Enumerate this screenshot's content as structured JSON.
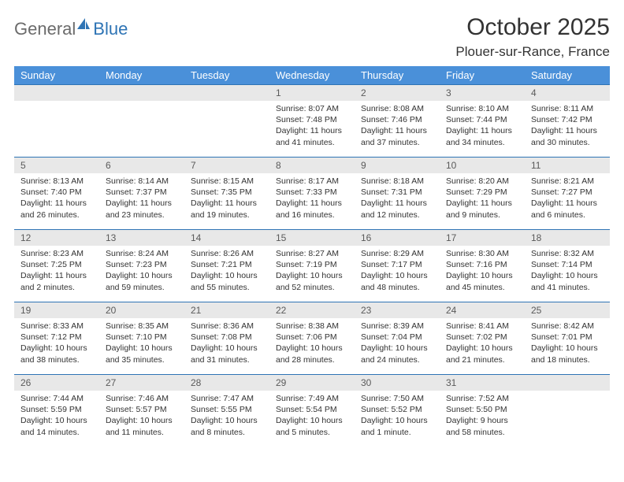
{
  "brand": {
    "part1": "General",
    "part2": "Blue"
  },
  "title": "October 2025",
  "location": "Plouer-sur-Rance, France",
  "colors": {
    "header_bg": "#4a90d9",
    "header_text": "#ffffff",
    "border": "#2e74b5",
    "daynum_bg": "#e8e8e8",
    "daynum_text": "#5a5a5a",
    "body_text": "#333333",
    "brand_gray": "#6b6b6b",
    "brand_blue": "#2e74b5"
  },
  "day_names": [
    "Sunday",
    "Monday",
    "Tuesday",
    "Wednesday",
    "Thursday",
    "Friday",
    "Saturday"
  ],
  "weeks": [
    [
      null,
      null,
      null,
      {
        "n": "1",
        "sr": "8:07 AM",
        "ss": "7:48 PM",
        "dl": "11 hours and 41 minutes."
      },
      {
        "n": "2",
        "sr": "8:08 AM",
        "ss": "7:46 PM",
        "dl": "11 hours and 37 minutes."
      },
      {
        "n": "3",
        "sr": "8:10 AM",
        "ss": "7:44 PM",
        "dl": "11 hours and 34 minutes."
      },
      {
        "n": "4",
        "sr": "8:11 AM",
        "ss": "7:42 PM",
        "dl": "11 hours and 30 minutes."
      }
    ],
    [
      {
        "n": "5",
        "sr": "8:13 AM",
        "ss": "7:40 PM",
        "dl": "11 hours and 26 minutes."
      },
      {
        "n": "6",
        "sr": "8:14 AM",
        "ss": "7:37 PM",
        "dl": "11 hours and 23 minutes."
      },
      {
        "n": "7",
        "sr": "8:15 AM",
        "ss": "7:35 PM",
        "dl": "11 hours and 19 minutes."
      },
      {
        "n": "8",
        "sr": "8:17 AM",
        "ss": "7:33 PM",
        "dl": "11 hours and 16 minutes."
      },
      {
        "n": "9",
        "sr": "8:18 AM",
        "ss": "7:31 PM",
        "dl": "11 hours and 12 minutes."
      },
      {
        "n": "10",
        "sr": "8:20 AM",
        "ss": "7:29 PM",
        "dl": "11 hours and 9 minutes."
      },
      {
        "n": "11",
        "sr": "8:21 AM",
        "ss": "7:27 PM",
        "dl": "11 hours and 6 minutes."
      }
    ],
    [
      {
        "n": "12",
        "sr": "8:23 AM",
        "ss": "7:25 PM",
        "dl": "11 hours and 2 minutes."
      },
      {
        "n": "13",
        "sr": "8:24 AM",
        "ss": "7:23 PM",
        "dl": "10 hours and 59 minutes."
      },
      {
        "n": "14",
        "sr": "8:26 AM",
        "ss": "7:21 PM",
        "dl": "10 hours and 55 minutes."
      },
      {
        "n": "15",
        "sr": "8:27 AM",
        "ss": "7:19 PM",
        "dl": "10 hours and 52 minutes."
      },
      {
        "n": "16",
        "sr": "8:29 AM",
        "ss": "7:17 PM",
        "dl": "10 hours and 48 minutes."
      },
      {
        "n": "17",
        "sr": "8:30 AM",
        "ss": "7:16 PM",
        "dl": "10 hours and 45 minutes."
      },
      {
        "n": "18",
        "sr": "8:32 AM",
        "ss": "7:14 PM",
        "dl": "10 hours and 41 minutes."
      }
    ],
    [
      {
        "n": "19",
        "sr": "8:33 AM",
        "ss": "7:12 PM",
        "dl": "10 hours and 38 minutes."
      },
      {
        "n": "20",
        "sr": "8:35 AM",
        "ss": "7:10 PM",
        "dl": "10 hours and 35 minutes."
      },
      {
        "n": "21",
        "sr": "8:36 AM",
        "ss": "7:08 PM",
        "dl": "10 hours and 31 minutes."
      },
      {
        "n": "22",
        "sr": "8:38 AM",
        "ss": "7:06 PM",
        "dl": "10 hours and 28 minutes."
      },
      {
        "n": "23",
        "sr": "8:39 AM",
        "ss": "7:04 PM",
        "dl": "10 hours and 24 minutes."
      },
      {
        "n": "24",
        "sr": "8:41 AM",
        "ss": "7:02 PM",
        "dl": "10 hours and 21 minutes."
      },
      {
        "n": "25",
        "sr": "8:42 AM",
        "ss": "7:01 PM",
        "dl": "10 hours and 18 minutes."
      }
    ],
    [
      {
        "n": "26",
        "sr": "7:44 AM",
        "ss": "5:59 PM",
        "dl": "10 hours and 14 minutes."
      },
      {
        "n": "27",
        "sr": "7:46 AM",
        "ss": "5:57 PM",
        "dl": "10 hours and 11 minutes."
      },
      {
        "n": "28",
        "sr": "7:47 AM",
        "ss": "5:55 PM",
        "dl": "10 hours and 8 minutes."
      },
      {
        "n": "29",
        "sr": "7:49 AM",
        "ss": "5:54 PM",
        "dl": "10 hours and 5 minutes."
      },
      {
        "n": "30",
        "sr": "7:50 AM",
        "ss": "5:52 PM",
        "dl": "10 hours and 1 minute."
      },
      {
        "n": "31",
        "sr": "7:52 AM",
        "ss": "5:50 PM",
        "dl": "9 hours and 58 minutes."
      },
      null
    ]
  ],
  "labels": {
    "sunrise": "Sunrise:",
    "sunset": "Sunset:",
    "daylight": "Daylight:"
  }
}
